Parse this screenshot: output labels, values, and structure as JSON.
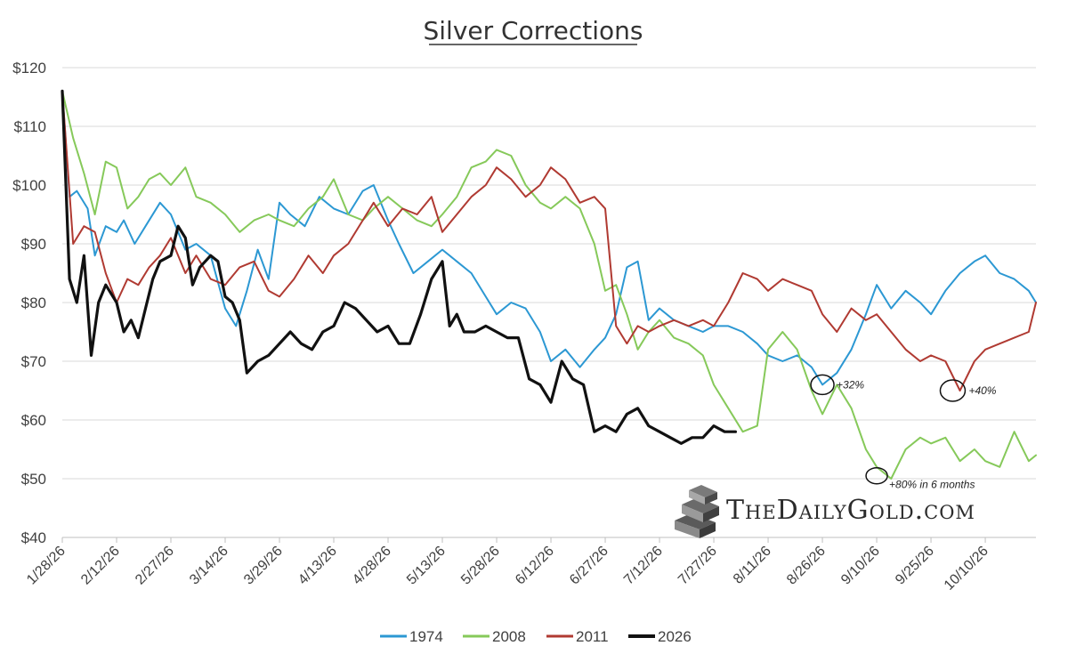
{
  "chart_data": {
    "type": "line",
    "title": "Silver Corrections",
    "xlabel": "",
    "ylabel": "",
    "ylim": [
      40,
      120
    ],
    "yticks": [
      40,
      50,
      60,
      70,
      80,
      90,
      100,
      110,
      120
    ],
    "ytick_labels": [
      "$40",
      "$50",
      "$60",
      "$70",
      "$80",
      "$90",
      "$100",
      "$110",
      "$120"
    ],
    "x_tick_labels": [
      "1/28/26",
      "2/12/26",
      "2/27/26",
      "3/14/26",
      "3/29/26",
      "4/13/26",
      "4/28/26",
      "5/13/26",
      "5/28/26",
      "6/12/26",
      "6/27/26",
      "7/12/26",
      "7/27/26",
      "8/11/26",
      "8/26/26",
      "9/10/26",
      "9/25/26",
      "10/10/26"
    ],
    "x_start": "1/28/26",
    "x_end": "10/24/26",
    "grid": true,
    "legend_position": "bottom",
    "series": [
      {
        "name": "1974",
        "color": "#2c98d3",
        "x": [
          "1/28/26",
          "1/30/26",
          "2/1/26",
          "2/4/26",
          "2/6/26",
          "2/9/26",
          "2/12/26",
          "2/14/26",
          "2/17/26",
          "2/20/26",
          "2/24/26",
          "2/27/26",
          "3/3/26",
          "3/6/26",
          "3/10/26",
          "3/14/26",
          "3/17/26",
          "3/20/26",
          "3/23/26",
          "3/26/26",
          "3/29/26",
          "4/1/26",
          "4/5/26",
          "4/9/26",
          "4/13/26",
          "4/17/26",
          "4/21/26",
          "4/24/26",
          "4/28/26",
          "5/1/26",
          "5/5/26",
          "5/9/26",
          "5/13/26",
          "5/17/26",
          "5/21/26",
          "5/25/26",
          "5/28/26",
          "6/1/26",
          "6/5/26",
          "6/9/26",
          "6/12/26",
          "6/16/26",
          "6/20/26",
          "6/24/26",
          "6/27/26",
          "6/30/26",
          "7/3/26",
          "7/6/26",
          "7/9/26",
          "7/12/26",
          "7/16/26",
          "7/20/26",
          "7/24/26",
          "7/27/26",
          "7/31/26",
          "8/4/26",
          "8/8/26",
          "8/11/26",
          "8/15/26",
          "8/19/26",
          "8/23/26",
          "8/26/26",
          "8/30/26",
          "9/3/26",
          "9/7/26",
          "9/10/26",
          "9/14/26",
          "9/18/26",
          "9/22/26",
          "9/25/26",
          "9/29/26",
          "10/3/26",
          "10/7/26",
          "10/10/26",
          "10/14/26",
          "10/18/26",
          "10/22/26",
          "10/24/26"
        ],
        "values": [
          116,
          98,
          99,
          96,
          88,
          93,
          92,
          94,
          90,
          93,
          97,
          95,
          89,
          90,
          88,
          79,
          76,
          82,
          89,
          84,
          97,
          95,
          93,
          98,
          96,
          95,
          99,
          100,
          94,
          90,
          85,
          87,
          89,
          87,
          85,
          81,
          78,
          80,
          79,
          75,
          70,
          72,
          69,
          72,
          74,
          78,
          86,
          87,
          77,
          79,
          77,
          76,
          75,
          76,
          76,
          75,
          73,
          71,
          70,
          71,
          69,
          66,
          68,
          72,
          78,
          83,
          79,
          82,
          80,
          78,
          82,
          85,
          87,
          88,
          85,
          84,
          82,
          80
        ]
      },
      {
        "name": "2008",
        "color": "#86c95a",
        "x": [
          "1/28/26",
          "1/31/26",
          "2/3/26",
          "2/6/26",
          "2/9/26",
          "2/12/26",
          "2/15/26",
          "2/18/26",
          "2/21/26",
          "2/24/26",
          "2/27/26",
          "3/3/26",
          "3/6/26",
          "3/10/26",
          "3/14/26",
          "3/18/26",
          "3/22/26",
          "3/26/26",
          "3/29/26",
          "4/2/26",
          "4/6/26",
          "4/10/26",
          "4/13/26",
          "4/17/26",
          "4/21/26",
          "4/24/26",
          "4/28/26",
          "5/2/26",
          "5/6/26",
          "5/10/26",
          "5/13/26",
          "5/17/26",
          "5/21/26",
          "5/25/26",
          "5/28/26",
          "6/1/26",
          "6/5/26",
          "6/9/26",
          "6/12/26",
          "6/16/26",
          "6/20/26",
          "6/24/26",
          "6/27/26",
          "6/30/26",
          "7/3/26",
          "7/6/26",
          "7/9/26",
          "7/12/26",
          "7/16/26",
          "7/20/26",
          "7/24/26",
          "7/27/26",
          "7/31/26",
          "8/4/26",
          "8/8/26",
          "8/11/26",
          "8/15/26",
          "8/19/26",
          "8/23/26",
          "8/26/26",
          "8/30/26",
          "9/3/26",
          "9/7/26",
          "9/10/26",
          "9/14/26",
          "9/18/26",
          "9/22/26",
          "9/25/26",
          "9/29/26",
          "10/3/26",
          "10/7/26",
          "10/10/26",
          "10/14/26",
          "10/18/26",
          "10/22/26",
          "10/24/26"
        ],
        "values": [
          116,
          108,
          102,
          95,
          104,
          103,
          96,
          98,
          101,
          102,
          100,
          103,
          98,
          97,
          95,
          92,
          94,
          95,
          94,
          93,
          96,
          98,
          101,
          95,
          94,
          96,
          98,
          96,
          94,
          93,
          95,
          98,
          103,
          104,
          106,
          105,
          100,
          97,
          96,
          98,
          96,
          90,
          82,
          83,
          78,
          72,
          75,
          77,
          74,
          73,
          71,
          66,
          62,
          58,
          59,
          72,
          75,
          72,
          65,
          61,
          66,
          62,
          55,
          52,
          50,
          55,
          57,
          56,
          57,
          53,
          55,
          53,
          52,
          58,
          53,
          54
        ]
      },
      {
        "name": "2011",
        "color": "#b03a32",
        "x": [
          "1/28/26",
          "1/31/26",
          "2/3/26",
          "2/6/26",
          "2/9/26",
          "2/12/26",
          "2/15/26",
          "2/18/26",
          "2/21/26",
          "2/24/26",
          "2/27/26",
          "3/3/26",
          "3/6/26",
          "3/10/26",
          "3/14/26",
          "3/18/26",
          "3/22/26",
          "3/26/26",
          "3/29/26",
          "4/2/26",
          "4/6/26",
          "4/10/26",
          "4/13/26",
          "4/17/26",
          "4/21/26",
          "4/24/26",
          "4/28/26",
          "5/2/26",
          "5/6/26",
          "5/10/26",
          "5/13/26",
          "5/17/26",
          "5/21/26",
          "5/25/26",
          "5/28/26",
          "6/1/26",
          "6/5/26",
          "6/9/26",
          "6/12/26",
          "6/16/26",
          "6/20/26",
          "6/24/26",
          "6/27/26",
          "6/30/26",
          "7/3/26",
          "7/6/26",
          "7/9/26",
          "7/12/26",
          "7/16/26",
          "7/20/26",
          "7/24/26",
          "7/27/26",
          "7/31/26",
          "8/4/26",
          "8/8/26",
          "8/11/26",
          "8/15/26",
          "8/19/26",
          "8/23/26",
          "8/26/26",
          "8/30/26",
          "9/3/26",
          "9/7/26",
          "9/10/26",
          "9/14/26",
          "9/18/26",
          "9/22/26",
          "9/25/26",
          "9/29/26",
          "10/3/26",
          "10/7/26",
          "10/10/26",
          "10/14/26",
          "10/18/26",
          "10/22/26",
          "10/24/26"
        ],
        "values": [
          116,
          90,
          93,
          92,
          85,
          80,
          84,
          83,
          86,
          88,
          91,
          85,
          88,
          84,
          83,
          86,
          87,
          82,
          81,
          84,
          88,
          85,
          88,
          90,
          94,
          97,
          93,
          96,
          95,
          98,
          92,
          95,
          98,
          100,
          103,
          101,
          98,
          100,
          103,
          101,
          97,
          98,
          96,
          76,
          73,
          76,
          75,
          76,
          77,
          76,
          77,
          76,
          80,
          85,
          84,
          82,
          84,
          83,
          82,
          78,
          75,
          79,
          77,
          78,
          75,
          72,
          70,
          71,
          70,
          65,
          70,
          72,
          73,
          74,
          75,
          80
        ]
      },
      {
        "name": "2026",
        "color": "#111111",
        "x": [
          "1/28/26",
          "1/30/26",
          "2/1/26",
          "2/3/26",
          "2/5/26",
          "2/7/26",
          "2/9/26",
          "2/12/26",
          "2/14/26",
          "2/16/26",
          "2/18/26",
          "2/20/26",
          "2/22/26",
          "2/24/26",
          "2/27/26",
          "3/1/26",
          "3/3/26",
          "3/5/26",
          "3/7/26",
          "3/10/26",
          "3/12/26",
          "3/14/26",
          "3/16/26",
          "3/18/26",
          "3/20/26",
          "3/23/26",
          "3/26/26",
          "3/29/26",
          "4/1/26",
          "4/4/26",
          "4/7/26",
          "4/10/26",
          "4/13/26",
          "4/16/26",
          "4/19/26",
          "4/22/26",
          "4/25/26",
          "4/28/26",
          "5/1/26",
          "5/4/26",
          "5/7/26",
          "5/10/26",
          "5/13/26",
          "5/15/26",
          "5/17/26",
          "5/19/26",
          "5/22/26",
          "5/25/26",
          "5/28/26",
          "5/31/26",
          "6/3/26",
          "6/6/26",
          "6/9/26",
          "6/12/26",
          "6/15/26",
          "6/18/26",
          "6/21/26",
          "6/24/26",
          "6/27/26",
          "6/30/26",
          "7/3/26",
          "7/6/26",
          "7/9/26",
          "7/12/26",
          "7/15/26",
          "7/18/26",
          "7/21/26",
          "7/24/26",
          "7/27/26",
          "7/30/26",
          "8/2/26"
        ],
        "values": [
          116,
          84,
          80,
          88,
          71,
          80,
          83,
          80,
          75,
          77,
          74,
          79,
          84,
          87,
          88,
          93,
          91,
          83,
          86,
          88,
          87,
          81,
          80,
          77,
          68,
          70,
          71,
          73,
          75,
          73,
          72,
          75,
          76,
          80,
          79,
          77,
          75,
          76,
          73,
          73,
          78,
          84,
          87,
          76,
          78,
          75,
          75,
          76,
          75,
          74,
          74,
          67,
          66,
          63,
          70,
          67,
          66,
          58,
          59,
          58,
          61,
          62,
          59,
          58,
          57,
          56,
          57,
          57,
          59,
          58,
          58
        ]
      }
    ],
    "annotations": [
      "+32%",
      "+40%",
      "+80% in 6 months"
    ]
  },
  "annotation_points": [
    {
      "label": "+32%",
      "x": "8/26/26",
      "y": 66
    },
    {
      "label": "+40%",
      "x": "10/1/26",
      "y": 65
    },
    {
      "label": "+80% in 6 months",
      "x": "9/10/26",
      "y": 50.5
    }
  ],
  "logo": {
    "text": "TheDailyGold.com"
  }
}
